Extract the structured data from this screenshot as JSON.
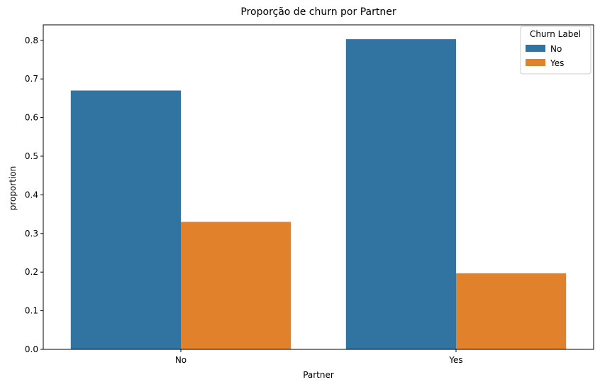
{
  "chart_data": {
    "type": "bar",
    "title": "Proporção de churn por Partner",
    "xlabel": "Partner",
    "ylabel": "proportion",
    "categories": [
      "No",
      "Yes"
    ],
    "series": [
      {
        "name": "No",
        "values": [
          0.67,
          0.803
        ],
        "color": "#3274a1"
      },
      {
        "name": "Yes",
        "values": [
          0.33,
          0.197
        ],
        "color": "#e1812c"
      }
    ],
    "ylim": [
      0,
      0.84
    ],
    "yticks": [
      0.0,
      0.1,
      0.2,
      0.3,
      0.4,
      0.5,
      0.6,
      0.7,
      0.8
    ],
    "ytick_labels": [
      "0.0",
      "0.1",
      "0.2",
      "0.3",
      "0.4",
      "0.5",
      "0.6",
      "0.7",
      "0.8"
    ],
    "grid": false,
    "legend": {
      "title": "Churn Label",
      "placement": "top-right"
    }
  }
}
